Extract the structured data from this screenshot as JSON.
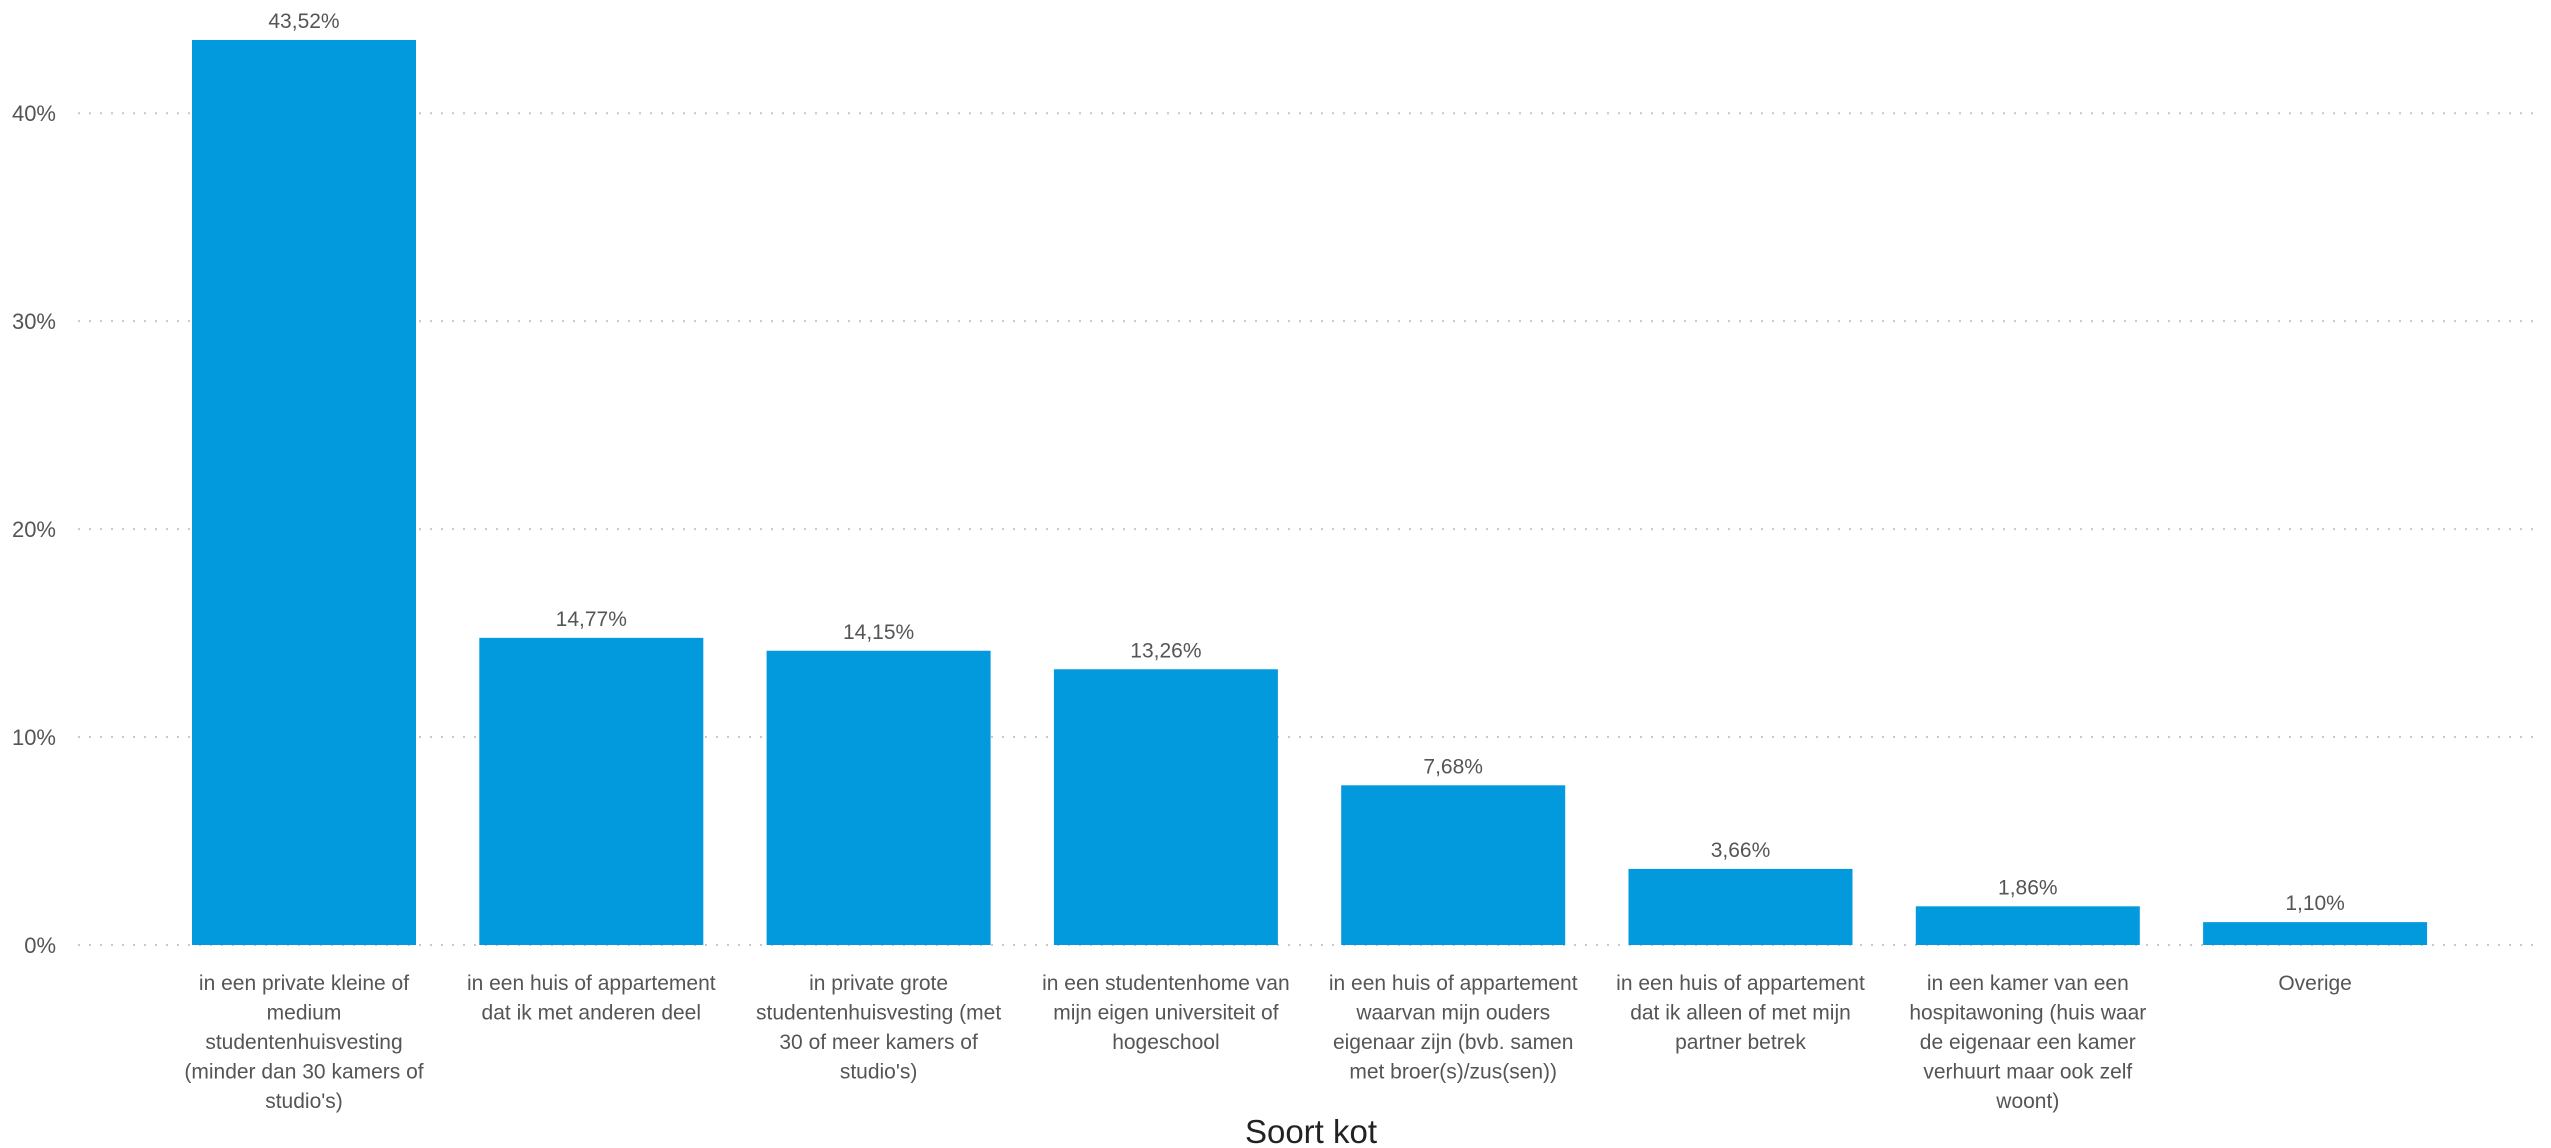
{
  "chart_data": {
    "type": "bar",
    "title": "",
    "xlabel": "Soort kot",
    "ylabel": "",
    "ylim": [
      0,
      43.52
    ],
    "grid": true,
    "color": "#0399DD",
    "y_ticks": [
      "0%",
      "10%",
      "20%",
      "30%",
      "40%"
    ],
    "y_tick_values": [
      0,
      10,
      20,
      30,
      40
    ],
    "categories": [
      [
        "in een private kleine of",
        "medium",
        "studentenhuisvesting",
        "(minder dan 30 kamers of",
        "studio's)"
      ],
      [
        "in een huis of appartement",
        "dat ik met anderen deel"
      ],
      [
        "in private grote",
        "studentenhuisvesting (met",
        "30 of meer kamers of",
        "studio's)"
      ],
      [
        "in een studentenhome van",
        "mijn eigen universiteit of",
        "hogeschool"
      ],
      [
        "in een huis of appartement",
        "waarvan mijn ouders",
        "eigenaar zijn (bvb. samen",
        "met broer(s)/zus(sen))"
      ],
      [
        "in een huis of appartement",
        "dat ik alleen of met mijn",
        "partner betrek"
      ],
      [
        "in een kamer van een",
        "hospitawoning (huis waar",
        "de eigenaar een kamer",
        "verhuurt maar ook zelf",
        "woont)"
      ],
      [
        "Overige"
      ]
    ],
    "values": [
      43.52,
      14.77,
      14.15,
      13.26,
      7.68,
      3.66,
      1.86,
      1.1
    ],
    "data_labels": [
      "43,52%",
      "14,77%",
      "14,15%",
      "13,26%",
      "7,68%",
      "3,66%",
      "1,86%",
      "1,10%"
    ]
  }
}
